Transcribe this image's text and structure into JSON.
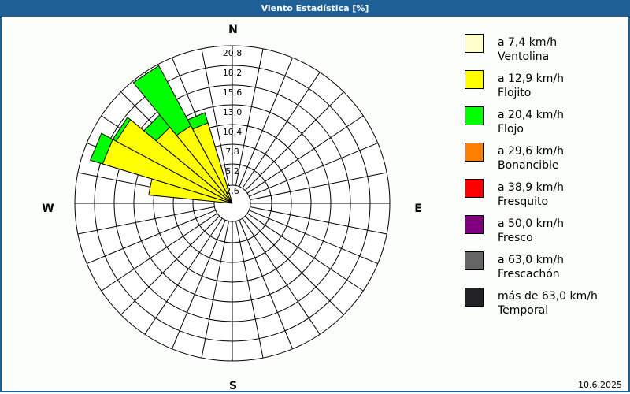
{
  "window": {
    "title": "Viento Estadística [%]",
    "date": "10.6.2025"
  },
  "chart_data": {
    "type": "wind-rose",
    "title": "Viento Estadística [%]",
    "unit": "%",
    "cardinals": {
      "n": "N",
      "e": "E",
      "s": "S",
      "w": "W"
    },
    "radial_ticks": [
      "2,6",
      "5,2",
      "7,8",
      "10,4",
      "13,0",
      "15,6",
      "18,2",
      "20,8"
    ],
    "radial_max": 20.8,
    "sector_count": 32,
    "sectors": [
      {
        "direction_deg": 281.25,
        "values": {
          "Flojito": 11.1,
          "Flojo": 0
        }
      },
      {
        "direction_deg": 292.5,
        "values": {
          "Flojito": 17.9,
          "Flojo": 1.7
        }
      },
      {
        "direction_deg": 303.75,
        "values": {
          "Flojito": 17.4,
          "Flojo": 0.5
        }
      },
      {
        "direction_deg": 315,
        "values": {
          "Flojito": 13.0,
          "Flojo": 2.1
        }
      },
      {
        "direction_deg": 326.25,
        "values": {
          "Flojito": 11.6,
          "Flojo": 9.0
        }
      },
      {
        "direction_deg": 337.5,
        "values": {
          "Flojito": 11.1,
          "Flojo": 1.4
        }
      }
    ],
    "legend": [
      {
        "key": "Ventolina",
        "line1": "a 7,4 km/h",
        "line2": "Ventolina",
        "color": "#ffffcc"
      },
      {
        "key": "Flojito",
        "line1": "a 12,9 km/h",
        "line2": "Flojito",
        "color": "#ffff00"
      },
      {
        "key": "Flojo",
        "line1": "a 20,4 km/h",
        "line2": "Flojo",
        "color": "#00ff00"
      },
      {
        "key": "Bonancible",
        "line1": "a 29,6 km/h",
        "line2": "Bonancible",
        "color": "#ff8000"
      },
      {
        "key": "Fresquito",
        "line1": "a 38,9 km/h",
        "line2": "Fresquito",
        "color": "#ff0000"
      },
      {
        "key": "Fresco",
        "line1": "a 50,0 km/h",
        "line2": "Fresco",
        "color": "#800080"
      },
      {
        "key": "Frescachon",
        "line1": "a 63,0 km/h",
        "line2": "Frescachón",
        "color": "#666666"
      },
      {
        "key": "Temporal",
        "line1": "más de 63,0 km/h",
        "line2": "Temporal",
        "color": "#222226"
      }
    ],
    "legend_position": "right"
  }
}
